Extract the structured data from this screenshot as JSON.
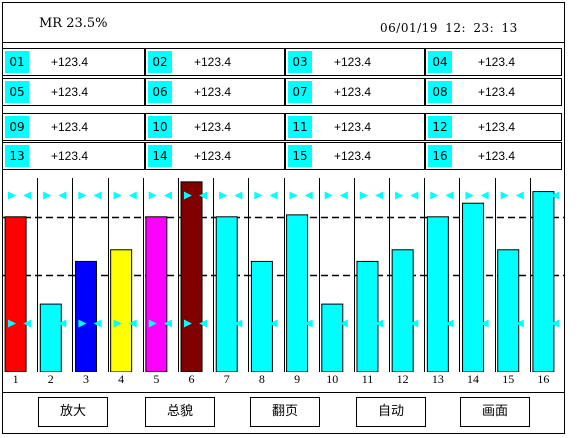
{
  "header": {
    "mr": "MR 23.5%",
    "datetime": "06/01/19 12: 23: 13"
  },
  "channels": [
    {
      "id": "01",
      "value": "+123.4"
    },
    {
      "id": "02",
      "value": "+123.4"
    },
    {
      "id": "03",
      "value": "+123.4"
    },
    {
      "id": "04",
      "value": "+123.4"
    },
    {
      "id": "05",
      "value": "+123.4"
    },
    {
      "id": "06",
      "value": "+123.4"
    },
    {
      "id": "07",
      "value": "+123.4"
    },
    {
      "id": "08",
      "value": "+123.4"
    },
    {
      "id": "09",
      "value": "+123.4"
    },
    {
      "id": "10",
      "value": "+123.4"
    },
    {
      "id": "11",
      "value": "+123.4"
    },
    {
      "id": "12",
      "value": "+123.4"
    },
    {
      "id": "13",
      "value": "+123.4"
    },
    {
      "id": "14",
      "value": "+123.4"
    },
    {
      "id": "15",
      "value": "+123.4"
    },
    {
      "id": "16",
      "value": "+123.4"
    }
  ],
  "chart_data": {
    "type": "bar",
    "categories": [
      "1",
      "2",
      "3",
      "4",
      "5",
      "6",
      "7",
      "8",
      "9",
      "10",
      "11",
      "12",
      "13",
      "14",
      "15",
      "16"
    ],
    "values": [
      0.8,
      0.35,
      0.57,
      0.63,
      0.8,
      0.98,
      0.8,
      0.57,
      0.81,
      0.35,
      0.57,
      0.63,
      0.8,
      0.87,
      0.63,
      0.93
    ],
    "bar_colors": [
      "#ff0000",
      "#00ffff",
      "#0000ff",
      "#ffff00",
      "#ff00ff",
      "#800000",
      "#00ffff",
      "#00ffff",
      "#00ffff",
      "#00ffff",
      "#00ffff",
      "#00ffff",
      "#00ffff",
      "#00ffff",
      "#00ffff",
      "#00ffff"
    ],
    "upper_marker": 0.91,
    "lower_marker": 0.25,
    "dashed_lines": [
      0.8,
      0.5
    ],
    "marker_color": "#00ffff",
    "ylim": [
      0,
      1
    ]
  },
  "buttons": [
    {
      "label": "放大"
    },
    {
      "label": "总貌"
    },
    {
      "label": "翻页"
    },
    {
      "label": "自动"
    },
    {
      "label": "画面"
    }
  ]
}
